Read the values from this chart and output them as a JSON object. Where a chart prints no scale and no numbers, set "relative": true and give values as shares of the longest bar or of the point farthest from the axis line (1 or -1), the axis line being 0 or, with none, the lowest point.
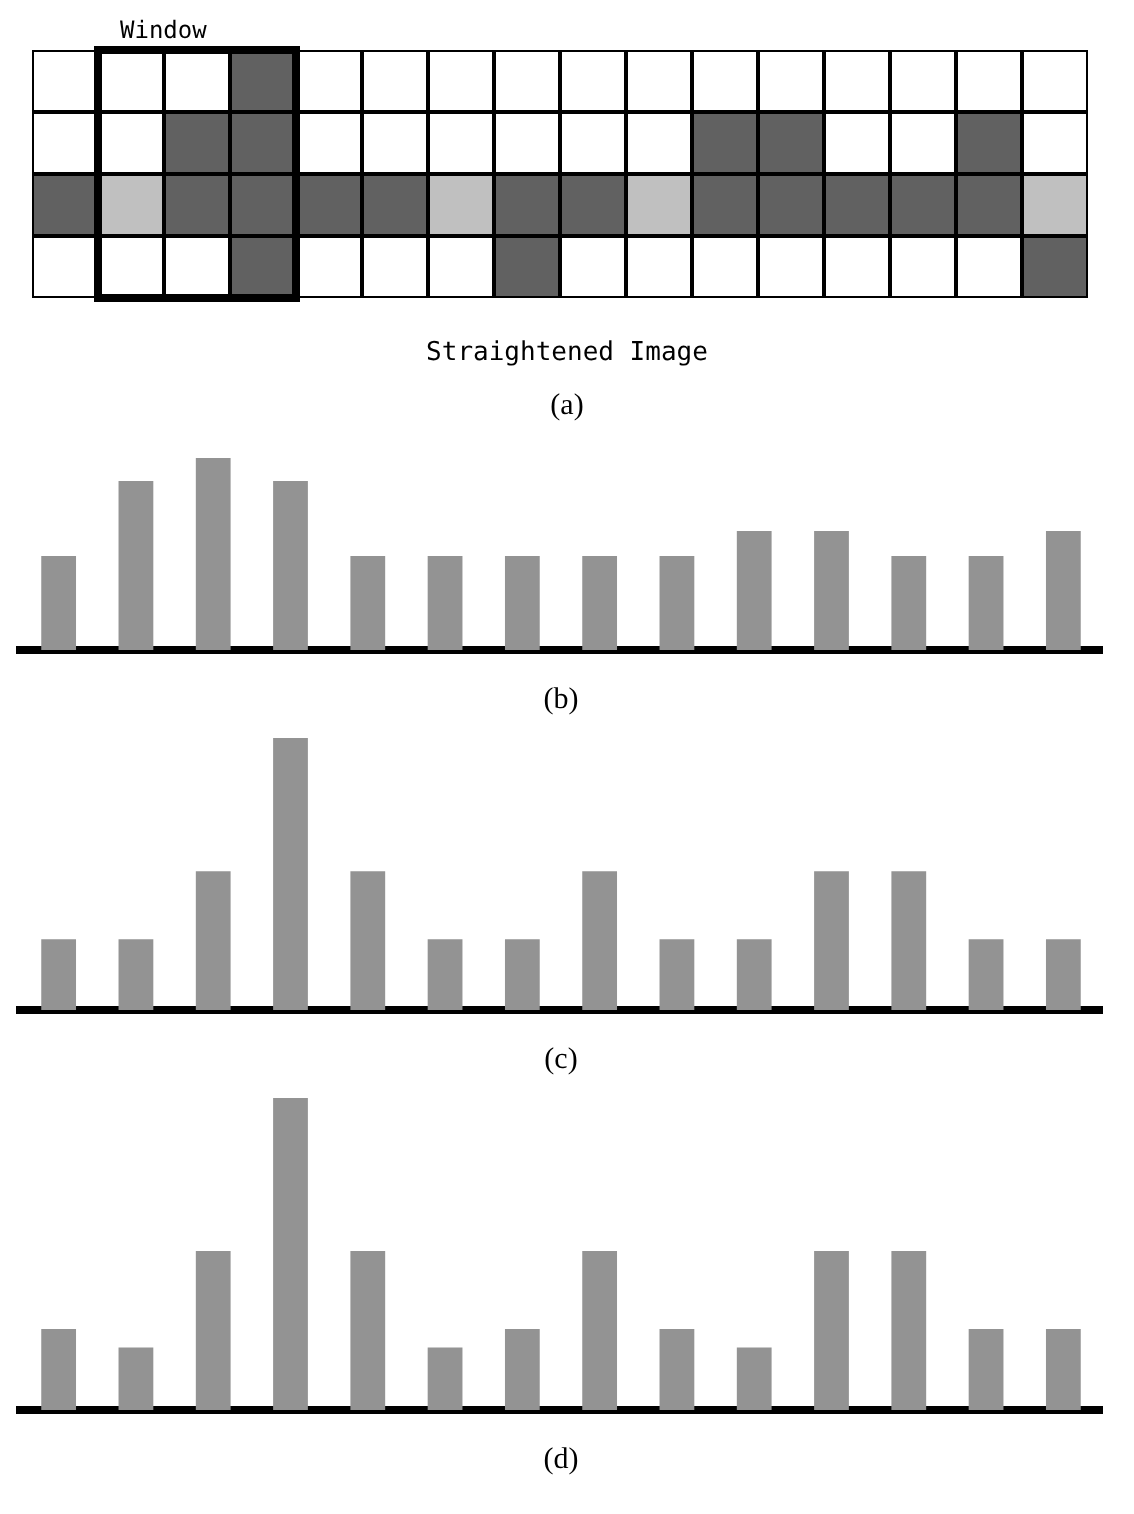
{
  "chart_data": [
    {
      "type": "other",
      "title": "(a)",
      "annotations": [
        "Window",
        "Straightened Image"
      ]
    },
    {
      "type": "bar",
      "title": "(b)",
      "relative": true,
      "color": "#939393",
      "categories": [
        null,
        null,
        null,
        null,
        null,
        null,
        null,
        null,
        null,
        null,
        null,
        null,
        null,
        null
      ],
      "values": [
        0.49,
        0.88,
        1,
        0.88,
        0.49,
        0.49,
        0.49,
        0.49,
        0.49,
        0.62,
        0.62,
        0.49,
        0.49,
        0.62
      ]
    },
    {
      "type": "bar",
      "title": "(c)",
      "relative": true,
      "color": "#939393",
      "categories": [
        null,
        null,
        null,
        null,
        null,
        null,
        null,
        null,
        null,
        null,
        null,
        null,
        null,
        null
      ],
      "values": [
        0.26,
        0.26,
        0.51,
        1,
        0.51,
        0.26,
        0.26,
        0.51,
        0.26,
        0.26,
        0.51,
        0.51,
        0.26,
        0.26
      ]
    },
    {
      "type": "bar",
      "title": "(d)",
      "relative": true,
      "color": "#939393",
      "categories": [
        null,
        null,
        null,
        null,
        null,
        null,
        null,
        null,
        null,
        null,
        null,
        null,
        null,
        null
      ],
      "values": [
        0.26,
        0.2,
        0.51,
        1,
        0.51,
        0.2,
        0.26,
        0.51,
        0.26,
        0.2,
        0.51,
        0.51,
        0.26,
        0.26
      ]
    }
  ]
}
